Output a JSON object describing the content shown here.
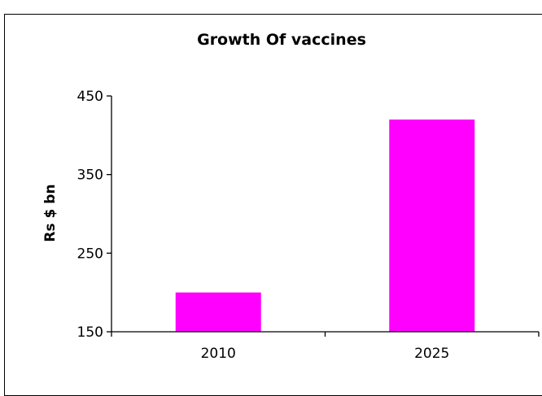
{
  "chart_data": {
    "type": "bar",
    "title": "Growth Of vaccines",
    "xlabel": "",
    "ylabel": "Rs $ bn",
    "categories": [
      "2010",
      "2025"
    ],
    "values": [
      200,
      420
    ],
    "ylim": [
      150,
      450
    ],
    "yticks": [
      150,
      250,
      350,
      450
    ],
    "grid": false,
    "legend": "none",
    "bar_color": "#FF00FF"
  }
}
